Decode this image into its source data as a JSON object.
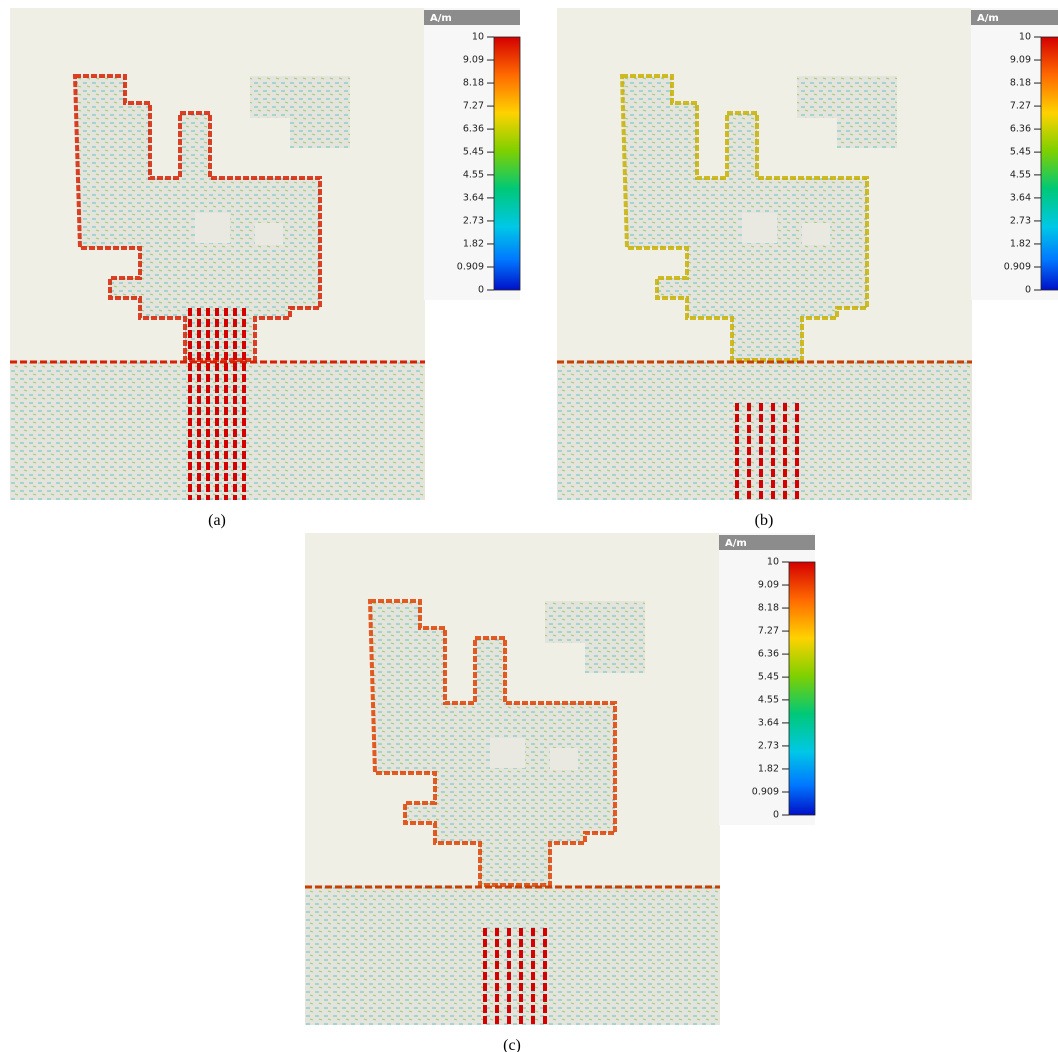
{
  "panels": [
    {
      "caption": "(a)",
      "colorbar": {
        "unit": "A/m",
        "ticks": [
          10,
          9.09,
          8.18,
          7.27,
          6.36,
          5.45,
          4.55,
          3.64,
          2.73,
          1.82,
          0.909,
          0
        ]
      }
    },
    {
      "caption": "(b)",
      "colorbar": {
        "unit": "A/m",
        "ticks": [
          10,
          9.09,
          8.18,
          7.27,
          6.36,
          5.45,
          4.55,
          3.64,
          2.73,
          1.82,
          0.909,
          0
        ]
      }
    },
    {
      "caption": "(c)",
      "colorbar": {
        "unit": "A/m",
        "ticks": [
          10,
          9.09,
          8.18,
          7.27,
          6.36,
          5.45,
          4.55,
          3.64,
          2.73,
          1.82,
          0.909,
          0
        ]
      }
    }
  ]
}
